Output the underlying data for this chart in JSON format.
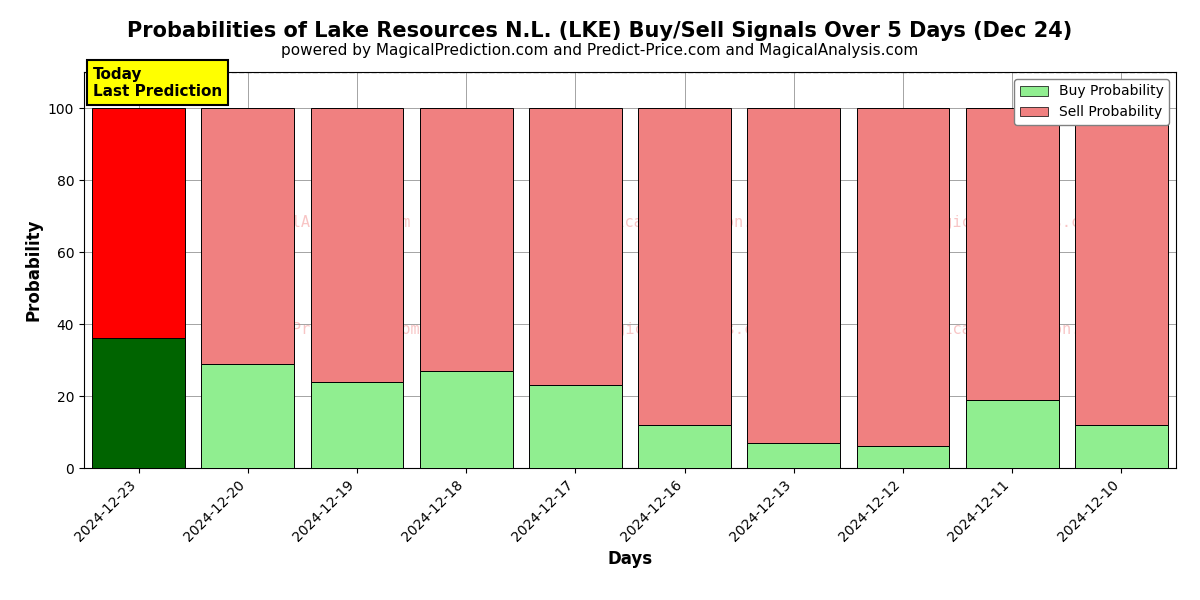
{
  "title": "Probabilities of Lake Resources N.L. (LKE) Buy/Sell Signals Over 5 Days (Dec 24)",
  "subtitle": "powered by MagicalPrediction.com and Predict-Price.com and MagicalAnalysis.com",
  "xlabel": "Days",
  "ylabel": "Probability",
  "categories": [
    "2024-12-23",
    "2024-12-20",
    "2024-12-19",
    "2024-12-18",
    "2024-12-17",
    "2024-12-16",
    "2024-12-13",
    "2024-12-12",
    "2024-12-11",
    "2024-12-10"
  ],
  "buy_values": [
    36,
    29,
    24,
    27,
    23,
    12,
    7,
    6,
    19,
    12
  ],
  "sell_values": [
    64,
    71,
    76,
    73,
    77,
    88,
    93,
    94,
    81,
    88
  ],
  "today_bar_index": 0,
  "buy_color_today": "#006400",
  "sell_color_today": "#ff0000",
  "buy_color_others": "#90EE90",
  "sell_color_others": "#F08080",
  "today_label": "Today\nLast Prediction",
  "today_label_bg": "#ffff00",
  "legend_buy_label": "Buy Probability",
  "legend_sell_label": "Sell Probability",
  "ylim": [
    0,
    110
  ],
  "yticks": [
    0,
    20,
    40,
    60,
    80,
    100
  ],
  "dashed_line_y": 110,
  "watermark_color": "#F08080",
  "watermark_alpha": 0.45,
  "bar_width": 0.85,
  "title_fontsize": 15,
  "subtitle_fontsize": 11,
  "axis_label_fontsize": 12,
  "tick_fontsize": 10
}
